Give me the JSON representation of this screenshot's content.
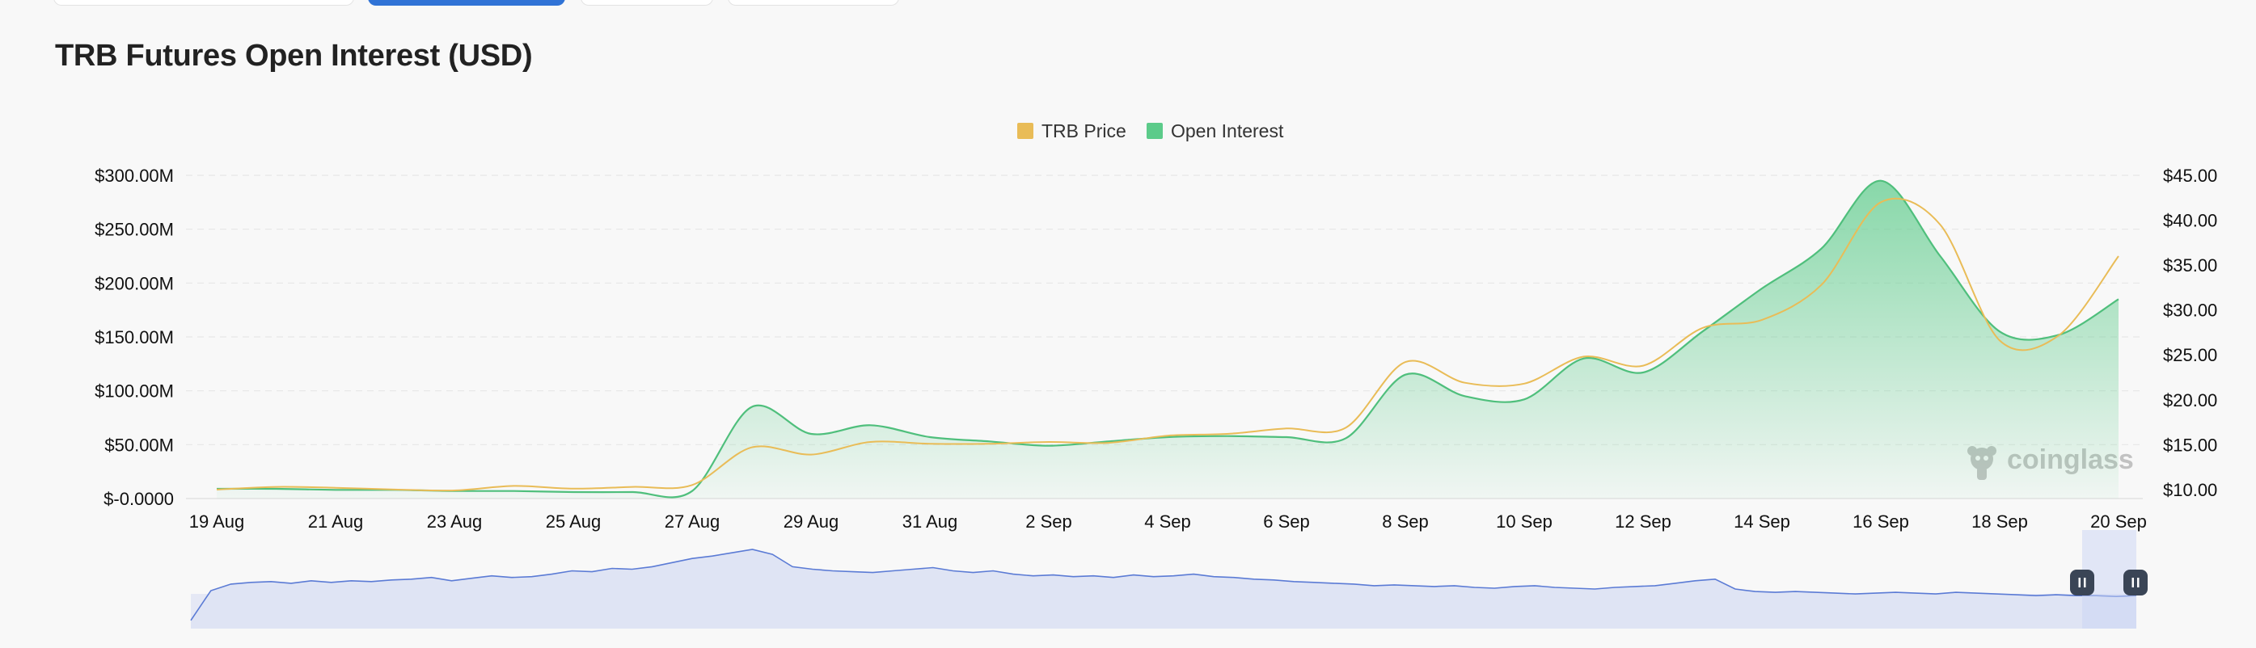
{
  "top_tabs": [
    {
      "state": "inactive"
    },
    {
      "state": "active"
    },
    {
      "state": "inactive"
    },
    {
      "state": "inactive"
    }
  ],
  "title": "TRB Futures Open Interest (USD)",
  "legend": [
    {
      "label": "TRB Price",
      "color": "#e9bc57"
    },
    {
      "label": "Open Interest",
      "color": "#5ccb8a"
    }
  ],
  "watermark": {
    "text": "coinglass",
    "icon": "coinglass-logo-icon"
  },
  "chart_data": {
    "type": "area",
    "title": "TRB Futures Open Interest (USD)",
    "x": [
      "19 Aug",
      "20 Aug",
      "21 Aug",
      "22 Aug",
      "23 Aug",
      "24 Aug",
      "25 Aug",
      "26 Aug",
      "27 Aug",
      "28 Aug",
      "29 Aug",
      "30 Aug",
      "31 Aug",
      "1 Sep",
      "2 Sep",
      "3 Sep",
      "4 Sep",
      "5 Sep",
      "6 Sep",
      "7 Sep",
      "8 Sep",
      "9 Sep",
      "10 Sep",
      "11 Sep",
      "12 Sep",
      "13 Sep",
      "14 Sep",
      "15 Sep",
      "16 Sep",
      "17 Sep",
      "18 Sep",
      "19 Sep",
      "20 Sep"
    ],
    "x_tick_labels": [
      "19 Aug",
      "21 Aug",
      "23 Aug",
      "25 Aug",
      "27 Aug",
      "29 Aug",
      "31 Aug",
      "2 Sep",
      "4 Sep",
      "6 Sep",
      "8 Sep",
      "10 Sep",
      "12 Sep",
      "14 Sep",
      "16 Sep",
      "18 Sep",
      "20 Sep"
    ],
    "series": [
      {
        "name": "Open Interest",
        "axis": "left",
        "type": "area",
        "color": "#5ccb8a",
        "values": [
          9,
          9,
          8,
          8,
          7,
          7,
          6,
          6,
          7,
          85,
          60,
          68,
          57,
          53,
          49,
          53,
          57,
          58,
          57,
          56,
          115,
          95,
          92,
          130,
          117,
          155,
          195,
          232,
          295,
          225,
          155,
          152,
          185
        ]
      },
      {
        "name": "TRB Price",
        "axis": "right",
        "type": "line",
        "color": "#e9bc57",
        "values": [
          10.0,
          10.3,
          10.2,
          10.0,
          9.9,
          10.4,
          10.1,
          10.3,
          10.5,
          14.7,
          13.9,
          15.3,
          15.1,
          15.1,
          15.3,
          15.2,
          16.0,
          16.2,
          16.8,
          16.9,
          24.2,
          21.9,
          21.8,
          24.8,
          23.8,
          28.0,
          28.9,
          32.8,
          42.0,
          39.5,
          26.6,
          27.2,
          36.0
        ]
      }
    ],
    "y_left": {
      "ticks": [
        "$300.00M",
        "$250.00M",
        "$200.00M",
        "$150.00M",
        "$100.00M",
        "$50.00M",
        "$-0.0000"
      ],
      "range": [
        0,
        300
      ],
      "unit": "M USD"
    },
    "y_right": {
      "ticks": [
        "$45.00",
        "$40.00",
        "$35.00",
        "$30.00",
        "$25.00",
        "$20.00",
        "$15.00",
        "$10.00"
      ],
      "range": [
        9,
        45
      ],
      "unit": "USD"
    },
    "grid": true,
    "legend_position": "top-center",
    "navigator": {
      "values": [
        10,
        46,
        54,
        56,
        57,
        55,
        58,
        56,
        58,
        57,
        59,
        60,
        62,
        58,
        61,
        64,
        62,
        63,
        66,
        70,
        69,
        73,
        72,
        75,
        80,
        85,
        88,
        92,
        96,
        90,
        75,
        72,
        70,
        69,
        68,
        70,
        72,
        74,
        70,
        68,
        70,
        66,
        64,
        65,
        63,
        64,
        62,
        65,
        63,
        64,
        66,
        63,
        62,
        60,
        59,
        57,
        56,
        55,
        54,
        52,
        53,
        52,
        51,
        52,
        50,
        49,
        51,
        52,
        50,
        49,
        48,
        50,
        51,
        52,
        55,
        58,
        60,
        48,
        45,
        44,
        45,
        44,
        43,
        42,
        43,
        44,
        43,
        42,
        44,
        43,
        42,
        41,
        40,
        41,
        40,
        40,
        39,
        40
      ],
      "selection": "20 Sep"
    }
  }
}
